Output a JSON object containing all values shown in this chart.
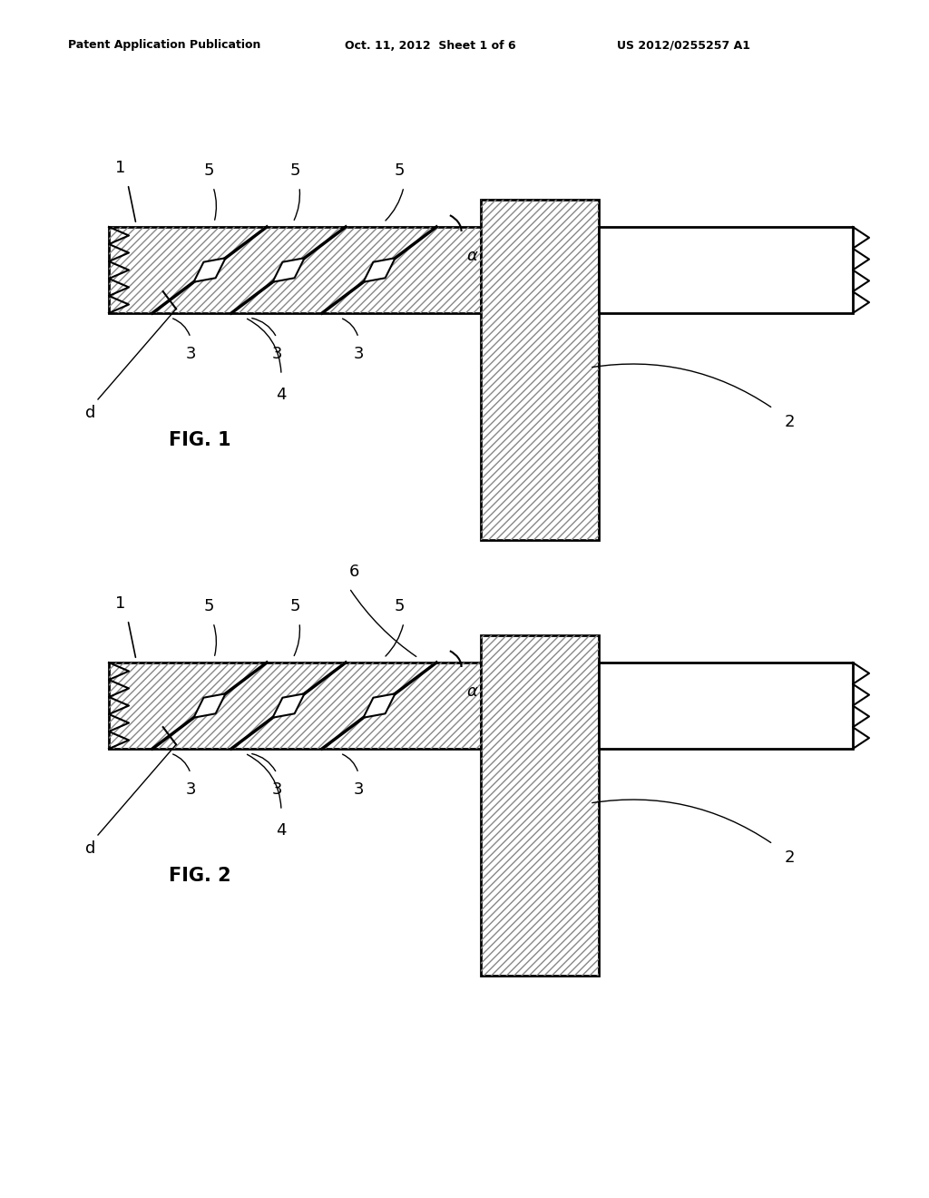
{
  "bg_color": "#ffffff",
  "line_color": "#000000",
  "header_text": "Patent Application Publication",
  "header_date": "Oct. 11, 2012  Sheet 1 of 6",
  "header_patent": "US 2012/0255257 A1",
  "fig1_label": "FIG. 1",
  "fig2_label": "FIG. 2"
}
